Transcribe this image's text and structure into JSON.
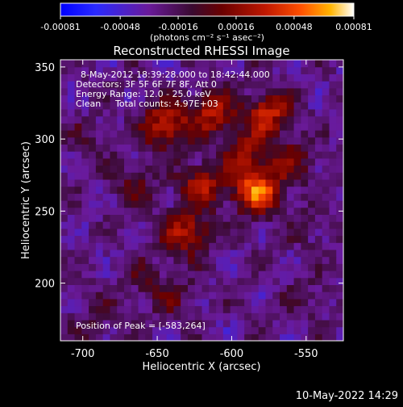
{
  "chart_data": {
    "type": "heatmap",
    "title": "Reconstructed RHESSI Image",
    "xlabel": "Heliocentric X (arcsec)",
    "ylabel": "Heliocentric Y (arcsec)",
    "xlim": [
      -715,
      -525
    ],
    "ylim": [
      160,
      355
    ],
    "xticks": [
      -700,
      -650,
      -600,
      -550
    ],
    "yticks": [
      200,
      250,
      300,
      350
    ],
    "colorbar": {
      "ticks": [
        -0.00081,
        -0.00048,
        -0.00016,
        0.00016,
        0.00048,
        0.00081
      ],
      "tick_labels": [
        "-0.00081",
        "-0.00048",
        "-0.00016",
        "0.00016",
        "0.00048",
        "0.00081"
      ],
      "unit_label": "(photons cm⁻² s⁻¹ asec⁻²)",
      "colors": [
        "#0000ff",
        "#2a2aff",
        "#6a1a9a",
        "#4a0a30",
        "#6a0000",
        "#c01800",
        "#ff5000",
        "#ffb400",
        "#ffffff"
      ]
    },
    "annotations": {
      "time_range": "8-May-2012 18:39:28.000 to 18:42:44.000",
      "detectors": "Detectors: 3F 5F 6F 7F 8F, Att 0",
      "energy": "Energy Range: 12.0 - 25.0 keV",
      "method": "Clean",
      "counts": "Total counts: 4.97E+03",
      "peak": "Position of Peak = [-583,264]"
    },
    "peak": [
      -583,
      264
    ],
    "sources": [
      {
        "x": -583,
        "y": 264,
        "value": 0.00081
      },
      {
        "x": -645,
        "y": 310,
        "value": 0.00062
      },
      {
        "x": -575,
        "y": 318,
        "value": 0.00058
      },
      {
        "x": -613,
        "y": 318,
        "value": 0.00052
      },
      {
        "x": -620,
        "y": 268,
        "value": 0.00048
      },
      {
        "x": -630,
        "y": 235,
        "value": 0.00055
      },
      {
        "x": -590,
        "y": 290,
        "value": 0.0004
      },
      {
        "x": -560,
        "y": 285,
        "value": 0.0003
      },
      {
        "x": -665,
        "y": 270,
        "value": 0.00025
      },
      {
        "x": -660,
        "y": 205,
        "value": 0.00018
      },
      {
        "x": -640,
        "y": 190,
        "value": 0.0002
      },
      {
        "x": -700,
        "y": 300,
        "value": 0.00012
      },
      {
        "x": -550,
        "y": 190,
        "value": 0.00015
      },
      {
        "x": -690,
        "y": 175,
        "value": 0.00016
      },
      {
        "x": -545,
        "y": 240,
        "value": 0.00014
      }
    ]
  },
  "footer": {
    "timestamp": "10-May-2022 14:29"
  }
}
